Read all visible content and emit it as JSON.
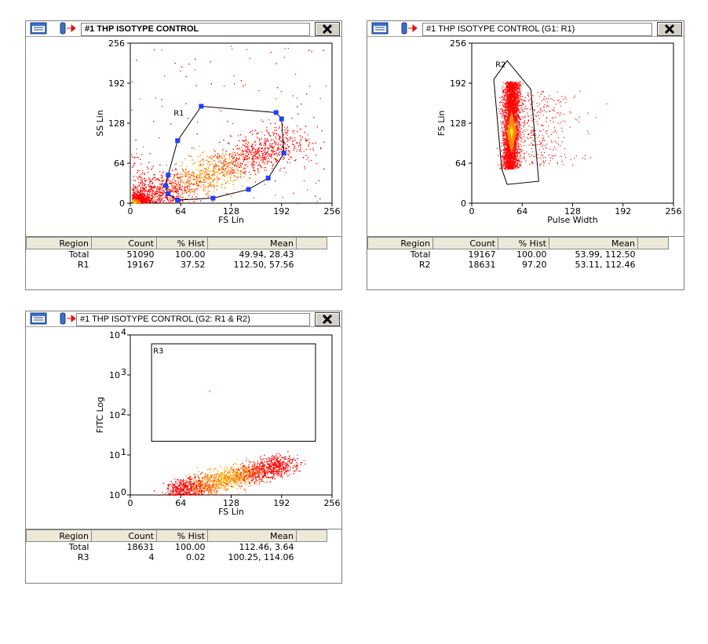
{
  "panels": [
    {
      "title": "#1 THP ISOTYPE CONTROL",
      "title_bold": true,
      "xlabel": "FS Lin",
      "ylabel": "SS Lin",
      "xticks": [
        "0",
        "64",
        "128",
        "192",
        "256"
      ],
      "yticks": [
        "0",
        "64",
        "128",
        "192",
        "256"
      ],
      "region_label": "R1",
      "stats_headers": [
        "Region",
        "Count",
        "% Hist",
        "Mean"
      ],
      "stats_rows": [
        [
          "Total",
          "51090",
          "100.00",
          "49.94, 28.43"
        ],
        [
          "R1",
          "19167",
          "37.52",
          "112.50, 57.56"
        ]
      ]
    },
    {
      "title": "#1 THP ISOTYPE CONTROL  (G1: R1)",
      "title_bold": false,
      "xlabel": "Pulse Width",
      "ylabel": "FS Lin",
      "xticks": [
        "0",
        "64",
        "128",
        "192",
        "256"
      ],
      "yticks": [
        "0",
        "64",
        "128",
        "192",
        "256"
      ],
      "region_label": "R2",
      "stats_headers": [
        "Region",
        "Count",
        "% Hist",
        "Mean"
      ],
      "stats_rows": [
        [
          "Total",
          "19167",
          "100.00",
          "53.99, 112.50"
        ],
        [
          "R2",
          "18631",
          "97.20",
          "53.11, 112.46"
        ]
      ]
    },
    {
      "title": "#1 THP ISOTYPE CONTROL  (G2: R1 & R2)",
      "title_bold": false,
      "xlabel": "FS Lin",
      "ylabel": "FITC Log",
      "xticks": [
        "0",
        "64",
        "128",
        "192",
        "256"
      ],
      "yticks": [
        "10",
        "10",
        "10",
        "10",
        "10"
      ],
      "ytick_exponents": [
        "0",
        "1",
        "2",
        "3",
        "4"
      ],
      "region_label": "R3",
      "stats_headers": [
        "Region",
        "Count",
        "% Hist",
        "Mean"
      ],
      "stats_rows": [
        [
          "Total",
          "18631",
          "100.00",
          "112.46, 3.64"
        ],
        [
          "R3",
          "4",
          "0.02",
          "100.25, 114.06"
        ]
      ]
    }
  ],
  "chart_data": [
    {
      "type": "scatter",
      "title": "#1 THP ISOTYPE CONTROL",
      "xlabel": "FS Lin",
      "ylabel": "SS Lin",
      "xlim": [
        0,
        256
      ],
      "ylim": [
        0,
        256
      ],
      "regions": [
        {
          "name": "R1",
          "polygon": [
            [
              45,
              28
            ],
            [
              48,
              15
            ],
            [
              60,
              5
            ],
            [
              105,
              8
            ],
            [
              150,
              22
            ],
            [
              175,
              40
            ],
            [
              195,
              80
            ],
            [
              192,
              135
            ],
            [
              185,
              145
            ],
            [
              90,
              155
            ],
            [
              60,
              100
            ],
            [
              48,
              45
            ]
          ]
        }
      ],
      "series": [
        {
          "name": "",
          "distribution": "diagonal cloud from origin toward (200,100)",
          "count": 51090
        }
      ],
      "stats": {
        "Total": {
          "count": 51090,
          "pct": 100.0,
          "mean": [
            49.94,
            28.43
          ]
        },
        "R1": {
          "count": 19167,
          "pct": 37.52,
          "mean": [
            112.5,
            57.56
          ]
        }
      }
    },
    {
      "type": "scatter",
      "title": "#1 THP ISOTYPE CONTROL  (G1: R1)",
      "xlabel": "Pulse Width",
      "ylabel": "FS Lin",
      "xlim": [
        0,
        256
      ],
      "ylim": [
        0,
        256
      ],
      "regions": [
        {
          "name": "R2",
          "polygon": [
            [
              28,
              198
            ],
            [
              45,
              228
            ],
            [
              75,
              182
            ],
            [
              85,
              35
            ],
            [
              45,
              30
            ],
            [
              38,
              55
            ]
          ]
        }
      ],
      "series": [
        {
          "name": "",
          "distribution": "vertical band near pulse width 50, FS 50-195",
          "count": 19167
        }
      ],
      "stats": {
        "Total": {
          "count": 19167,
          "pct": 100.0,
          "mean": [
            53.99,
            112.5
          ]
        },
        "R2": {
          "count": 18631,
          "pct": 97.2,
          "mean": [
            53.11,
            112.46
          ]
        }
      }
    },
    {
      "type": "scatter",
      "title": "#1 THP ISOTYPE CONTROL  (G2: R1 & R2)",
      "xlabel": "FS Lin",
      "ylabel": "FITC Log",
      "xlim": [
        0,
        256
      ],
      "ylim": [
        1,
        10000
      ],
      "yscale": "log",
      "regions": [
        {
          "name": "R3",
          "rect": {
            "x": [
              27,
              235
            ],
            "y": [
              22,
              6000
            ]
          }
        }
      ],
      "series": [
        {
          "name": "",
          "distribution": "elongated band from FS 50 to 200, FITC 1-10",
          "count": 18631
        }
      ],
      "stats": {
        "Total": {
          "count": 18631,
          "pct": 100.0,
          "mean": [
            112.46,
            3.64
          ]
        },
        "R3": {
          "count": 4,
          "pct": 0.02,
          "mean": [
            100.25,
            114.06
          ]
        }
      }
    }
  ],
  "colors": {
    "window_border": "#7f7f7f",
    "close_button": "#d4d0c8",
    "header_bg": "#ece9d8",
    "density_low": "#ff0000",
    "density_mid": "#ff8800",
    "density_high": "#ffee00",
    "density_peak": "#6633aa",
    "gate_vertex": "#1f3fff"
  },
  "icons": [
    "stats-window-icon",
    "tube-arrow-icon",
    "close-icon"
  ]
}
